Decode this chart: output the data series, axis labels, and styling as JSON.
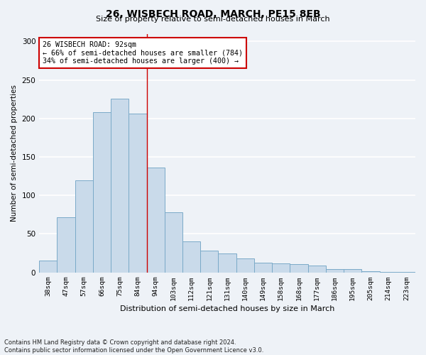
{
  "title": "26, WISBECH ROAD, MARCH, PE15 8EB",
  "subtitle": "Size of property relative to semi-detached houses in March",
  "xlabel": "Distribution of semi-detached houses by size in March",
  "ylabel": "Number of semi-detached properties",
  "bar_color": "#c9daea",
  "bar_edge_color": "#7aaac8",
  "background_color": "#eef2f7",
  "grid_color": "#ffffff",
  "categories": [
    "38sqm",
    "47sqm",
    "57sqm",
    "66sqm",
    "75sqm",
    "84sqm",
    "94sqm",
    "103sqm",
    "112sqm",
    "121sqm",
    "131sqm",
    "140sqm",
    "149sqm",
    "158sqm",
    "168sqm",
    "177sqm",
    "186sqm",
    "195sqm",
    "205sqm",
    "214sqm",
    "223sqm"
  ],
  "values": [
    15,
    72,
    120,
    208,
    226,
    206,
    136,
    78,
    40,
    28,
    25,
    18,
    13,
    12,
    11,
    9,
    4,
    4,
    2,
    1,
    1
  ],
  "property_bin_index": 5,
  "property_label": "26 WISBECH ROAD: 92sqm",
  "smaller_pct": 66,
  "smaller_count": 784,
  "larger_pct": 34,
  "larger_count": 400,
  "annotation_box_color": "#ffffff",
  "annotation_box_edge_color": "#cc0000",
  "vline_color": "#cc0000",
  "ylim": [
    0,
    310
  ],
  "yticks": [
    0,
    50,
    100,
    150,
    200,
    250,
    300
  ],
  "footer": "Contains HM Land Registry data © Crown copyright and database right 2024.\nContains public sector information licensed under the Open Government Licence v3.0."
}
